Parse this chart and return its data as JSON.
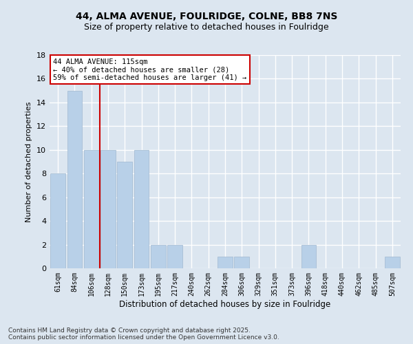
{
  "title": "44, ALMA AVENUE, FOULRIDGE, COLNE, BB8 7NS",
  "subtitle": "Size of property relative to detached houses in Foulridge",
  "xlabel": "Distribution of detached houses by size in Foulridge",
  "ylabel": "Number of detached properties",
  "categories": [
    "61sqm",
    "84sqm",
    "106sqm",
    "128sqm",
    "150sqm",
    "173sqm",
    "195sqm",
    "217sqm",
    "240sqm",
    "262sqm",
    "284sqm",
    "306sqm",
    "329sqm",
    "351sqm",
    "373sqm",
    "396sqm",
    "418sqm",
    "440sqm",
    "462sqm",
    "485sqm",
    "507sqm"
  ],
  "values": [
    8,
    15,
    10,
    10,
    9,
    10,
    2,
    2,
    0,
    0,
    1,
    1,
    0,
    0,
    0,
    2,
    0,
    0,
    0,
    0,
    1
  ],
  "bar_color": "#b8d0e8",
  "bar_edgecolor": "#a0b8d0",
  "background_color": "#dce6f0",
  "grid_color": "#ffffff",
  "vline_x_index": 2.5,
  "vline_color": "#cc0000",
  "annotation_text": "44 ALMA AVENUE: 115sqm\n← 40% of detached houses are smaller (28)\n59% of semi-detached houses are larger (41) →",
  "annotation_box_color": "#ffffff",
  "annotation_box_edgecolor": "#cc0000",
  "ylim": [
    0,
    18
  ],
  "yticks": [
    0,
    2,
    4,
    6,
    8,
    10,
    12,
    14,
    16,
    18
  ],
  "footer": "Contains HM Land Registry data © Crown copyright and database right 2025.\nContains public sector information licensed under the Open Government Licence v3.0.",
  "title_fontsize": 10,
  "subtitle_fontsize": 9,
  "annotation_fontsize": 7.5,
  "footer_fontsize": 6.5,
  "ylabel_fontsize": 8,
  "xlabel_fontsize": 8.5
}
